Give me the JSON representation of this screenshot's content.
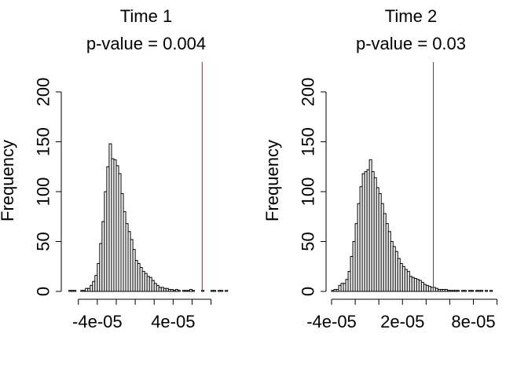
{
  "chart_data": [
    {
      "type": "histogram",
      "title": "Time 1",
      "subtitle": "p-value = 0.004",
      "ylabel": "Frequency",
      "xlabel": "",
      "x_ticks": [
        -6e-05,
        -4e-05,
        -2e-05,
        0,
        2e-05,
        4e-05,
        6e-05,
        8e-05
      ],
      "x_tick_labels": [
        {
          "value": -4e-05,
          "label": "-4e-05"
        },
        {
          "value": 4e-05,
          "label": "4e-05"
        }
      ],
      "xlim": [
        -7.22e-05,
        9.61e-05
      ],
      "y_ticks": [
        0,
        50,
        100,
        150,
        200
      ],
      "ylim": [
        0,
        200
      ],
      "bins_start": -7e-05,
      "bin_width": 2.5e-06,
      "counts": [
        1,
        1,
        1,
        0,
        0,
        1,
        1,
        3,
        3,
        6,
        10,
        16,
        28,
        48,
        70,
        100,
        125,
        148,
        133,
        132,
        126,
        118,
        98,
        80,
        68,
        60,
        52,
        42,
        31,
        28,
        24,
        20,
        18,
        15,
        14,
        11,
        8,
        6,
        4,
        4,
        3,
        3,
        2,
        2,
        1,
        2,
        1,
        0,
        1,
        1,
        1,
        2,
        1,
        0,
        0,
        0,
        1,
        0,
        0,
        0,
        1,
        1,
        0,
        1,
        1,
        0,
        1
      ],
      "reference_line": {
        "value": 7.07e-05,
        "color": "#ff0000"
      }
    },
    {
      "type": "histogram",
      "title": "Time 2",
      "subtitle": "p-value = 0.03",
      "ylabel": "Frequency",
      "xlabel": "",
      "x_ticks": [
        -4e-05,
        -2e-05,
        0,
        2e-05,
        4e-05,
        6e-05,
        8e-05,
        0.0001
      ],
      "x_tick_labels": [
        {
          "value": -4e-05,
          "label": "-4e-05"
        },
        {
          "value": 2e-05,
          "label": "2e-05"
        },
        {
          "value": 8e-05,
          "label": "8e-05"
        }
      ],
      "xlim": [
        -4e-05,
        9.63e-05
      ],
      "y_ticks": [
        0,
        50,
        100,
        150,
        200
      ],
      "ylim": [
        0,
        200
      ],
      "bins_start": -4e-05,
      "bin_width": 2e-06,
      "counts": [
        1,
        2,
        2,
        6,
        8,
        8,
        12,
        20,
        35,
        50,
        68,
        88,
        105,
        118,
        120,
        122,
        132,
        120,
        114,
        104,
        98,
        88,
        78,
        68,
        60,
        50,
        45,
        40,
        33,
        28,
        25,
        22,
        20,
        15,
        14,
        13,
        12,
        11,
        9,
        7,
        6,
        5,
        4,
        4,
        3,
        2,
        2,
        2,
        2,
        1,
        1,
        1,
        1,
        1,
        0,
        1,
        1,
        0,
        1,
        1,
        0,
        1,
        1,
        1,
        0,
        1,
        0,
        1,
        0
      ],
      "reference_line": {
        "value": 4.61e-05,
        "color": "#ff0000"
      }
    }
  ]
}
